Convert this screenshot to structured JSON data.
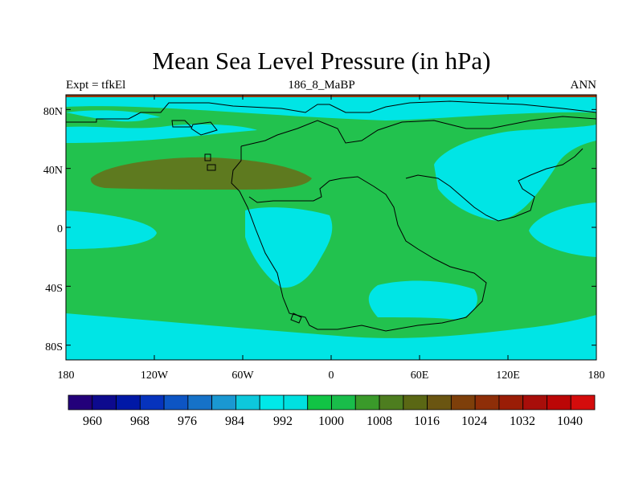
{
  "title": "Mean Sea Level Pressure (in hPa)",
  "subtitle_left": "Expt = tfkEl",
  "subtitle_center": "186_8_MaBP",
  "subtitle_right": "ANN",
  "map": {
    "lon_range": [
      -180,
      180
    ],
    "lat_range": [
      -90,
      90
    ],
    "x_ticks": [
      "180",
      "120W",
      "60W",
      "0",
      "60E",
      "120E",
      "180"
    ],
    "y_ticks": [
      "80N",
      "40N",
      "0",
      "40S",
      "80S"
    ],
    "field_colors": {
      "below_1000": "#00e5e5",
      "from_1000_to_1012": "#22c24e",
      "from_1012_to_1020": "#5e7a1f",
      "above_1020": "#8f3a10"
    }
  },
  "colorbar": {
    "labels": [
      "960",
      "968",
      "976",
      "984",
      "992",
      "1000",
      "1008",
      "1016",
      "1024",
      "1032",
      "1040"
    ],
    "colors": [
      "#23007a",
      "#0d0a8e",
      "#0018a6",
      "#0633bd",
      "#0d55c4",
      "#1672c8",
      "#1a98d2",
      "#0dc8dc",
      "#00e8e8",
      "#00e0e0",
      "#11c445",
      "#19bd4a",
      "#3a9a2a",
      "#4d7d1f",
      "#5a6714",
      "#6a5511",
      "#7e3f0a",
      "#8e2e08",
      "#9a1d06",
      "#a80e0a",
      "#bb0606",
      "#d40c0c"
    ]
  }
}
